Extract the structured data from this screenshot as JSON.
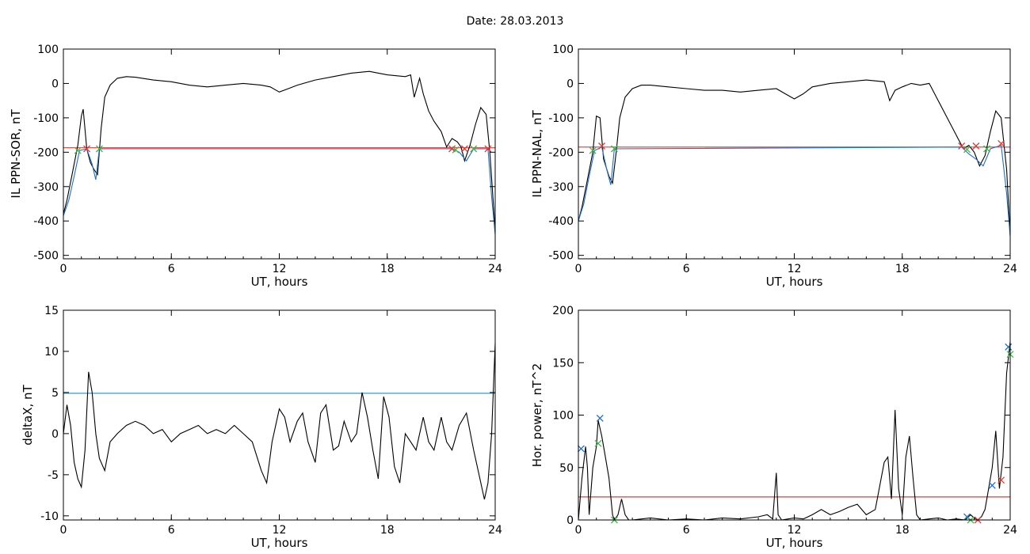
{
  "title": "Date:  28.03.2013",
  "chart_data": [
    {
      "type": "line",
      "xlabel": "UT, hours",
      "ylabel": "IL PPN-SOR, nT",
      "xlim": [
        0,
        24
      ],
      "ylim": [
        -510,
        100
      ],
      "xticks": [
        0,
        6,
        12,
        18,
        24
      ],
      "yticks": [
        100,
        0,
        -100,
        -200,
        -300,
        -400,
        -500
      ],
      "series": [
        {
          "color": "#000000",
          "x": [
            0,
            0.2,
            0.5,
            0.8,
            1.0,
            1.1,
            1.3,
            1.5,
            1.7,
            1.9,
            2.1,
            2.3,
            2.6,
            3.0,
            3.5,
            4.0,
            5.0,
            6.0,
            7.0,
            8.0,
            9.0,
            10.0,
            11.0,
            11.5,
            12.0,
            12.5,
            13.0,
            14.0,
            15.0,
            16.0,
            17.0,
            18.0,
            19.0,
            19.3,
            19.5,
            19.8,
            20.0,
            20.3,
            20.6,
            21.0,
            21.3,
            21.6,
            21.9,
            22.1,
            22.3,
            22.6,
            22.9,
            23.2,
            23.5,
            23.7,
            23.9,
            24.0
          ],
          "y": [
            -380,
            -340,
            -260,
            -180,
            -95,
            -75,
            -190,
            -230,
            -250,
            -265,
            -130,
            -40,
            -5,
            15,
            20,
            18,
            10,
            5,
            -5,
            -10,
            -5,
            0,
            -5,
            -10,
            -25,
            -15,
            -5,
            10,
            20,
            30,
            35,
            25,
            20,
            25,
            -40,
            15,
            -30,
            -80,
            -110,
            -140,
            -185,
            -160,
            -170,
            -185,
            -225,
            -180,
            -120,
            -70,
            -90,
            -200,
            -350,
            -430
          ]
        },
        {
          "color": "#1f6fc7",
          "x": [
            0,
            0.3,
            0.6,
            0.9,
            1.3,
            1.6,
            1.8,
            2.0,
            21.6,
            22.0,
            22.4,
            22.8,
            23.6,
            23.8,
            24.0
          ],
          "y": [
            -385,
            -340,
            -270,
            -195,
            -190,
            -235,
            -280,
            -190,
            -190,
            -200,
            -225,
            -190,
            -190,
            -330,
            -440
          ]
        }
      ],
      "threshold": {
        "y": -187,
        "color": "#e53935"
      },
      "markers": [
        {
          "x": 0.8,
          "y": -195,
          "color": "#3fb54a"
        },
        {
          "x": 1.3,
          "y": -190,
          "color": "#e53935"
        },
        {
          "x": 2.0,
          "y": -190,
          "color": "#3fb54a"
        },
        {
          "x": 21.6,
          "y": -190,
          "color": "#e53935"
        },
        {
          "x": 21.8,
          "y": -193,
          "color": "#3fb54a"
        },
        {
          "x": 22.3,
          "y": -190,
          "color": "#e53935"
        },
        {
          "x": 22.8,
          "y": -190,
          "color": "#3fb54a"
        },
        {
          "x": 23.6,
          "y": -190,
          "color": "#e53935"
        }
      ]
    },
    {
      "type": "line",
      "xlabel": "UT, hours",
      "ylabel": "IL PPN-NAL, nT",
      "xlim": [
        0,
        24
      ],
      "ylim": [
        -510,
        100
      ],
      "xticks": [
        0,
        6,
        12,
        18,
        24
      ],
      "yticks": [
        100,
        0,
        -100,
        -200,
        -300,
        -400,
        -500
      ],
      "series": [
        {
          "color": "#000000",
          "x": [
            0,
            0.2,
            0.5,
            0.8,
            1.0,
            1.2,
            1.4,
            1.7,
            1.9,
            2.1,
            2.3,
            2.6,
            3.0,
            3.5,
            4.0,
            5.0,
            6.0,
            7.0,
            8.0,
            9.0,
            10.0,
            11.0,
            11.5,
            12.0,
            12.5,
            13.0,
            14.0,
            15.0,
            16.0,
            17.0,
            17.3,
            17.6,
            18.0,
            18.5,
            19.0,
            19.5,
            20.0,
            20.5,
            20.8,
            21.1,
            21.4,
            21.7,
            22.0,
            22.3,
            22.6,
            22.9,
            23.2,
            23.5,
            23.8,
            24.0
          ],
          "y": [
            -400,
            -360,
            -280,
            -200,
            -95,
            -100,
            -220,
            -270,
            -290,
            -200,
            -100,
            -40,
            -15,
            -5,
            -5,
            -10,
            -15,
            -20,
            -20,
            -25,
            -20,
            -15,
            -30,
            -45,
            -30,
            -10,
            0,
            5,
            10,
            5,
            -50,
            -20,
            -10,
            0,
            -5,
            0,
            -50,
            -100,
            -130,
            -160,
            -190,
            -180,
            -200,
            -240,
            -210,
            -140,
            -80,
            -100,
            -250,
            -440
          ]
        },
        {
          "color": "#1f6fc7",
          "x": [
            0,
            0.3,
            0.6,
            0.9,
            1.3,
            1.6,
            1.8,
            2.0,
            21.3,
            21.7,
            22.1,
            22.5,
            22.9,
            23.5,
            23.8,
            24.0
          ],
          "y": [
            -400,
            -350,
            -270,
            -195,
            -185,
            -255,
            -295,
            -190,
            -185,
            -205,
            -220,
            -240,
            -190,
            -180,
            -320,
            -445
          ]
        }
      ],
      "threshold": {
        "y": -185,
        "color": "#e53935"
      },
      "markers": [
        {
          "x": 0.8,
          "y": -195,
          "color": "#3fb54a"
        },
        {
          "x": 1.3,
          "y": -182,
          "color": "#e53935"
        },
        {
          "x": 2.0,
          "y": -190,
          "color": "#3fb54a"
        },
        {
          "x": 21.3,
          "y": -182,
          "color": "#e53935"
        },
        {
          "x": 21.6,
          "y": -192,
          "color": "#3fb54a"
        },
        {
          "x": 22.1,
          "y": -182,
          "color": "#e53935"
        },
        {
          "x": 22.7,
          "y": -190,
          "color": "#3fb54a"
        },
        {
          "x": 23.5,
          "y": -175,
          "color": "#e53935"
        }
      ]
    },
    {
      "type": "line",
      "xlabel": "UT, hours",
      "ylabel": "deltaX, nT",
      "xlim": [
        0,
        24
      ],
      "ylim": [
        -10.5,
        15
      ],
      "xticks": [
        0,
        6,
        12,
        18,
        24
      ],
      "yticks": [
        15,
        10,
        5,
        0,
        -5,
        -10
      ],
      "series": [
        {
          "color": "#000000",
          "x": [
            0,
            0.2,
            0.4,
            0.6,
            0.8,
            1.0,
            1.2,
            1.4,
            1.6,
            1.8,
            2.0,
            2.3,
            2.6,
            3.0,
            3.5,
            4.0,
            4.5,
            5.0,
            5.5,
            6.0,
            6.5,
            7.0,
            7.5,
            8.0,
            8.5,
            9.0,
            9.5,
            10.0,
            10.5,
            11.0,
            11.3,
            11.6,
            12.0,
            12.3,
            12.6,
            13.0,
            13.3,
            13.6,
            14.0,
            14.3,
            14.6,
            15.0,
            15.3,
            15.6,
            16.0,
            16.3,
            16.6,
            16.9,
            17.2,
            17.5,
            17.8,
            18.1,
            18.4,
            18.7,
            19.0,
            19.3,
            19.6,
            20.0,
            20.3,
            20.6,
            21.0,
            21.3,
            21.6,
            22.0,
            22.4,
            22.8,
            23.1,
            23.4,
            23.6,
            23.8,
            24.0
          ],
          "y": [
            0,
            3.5,
            1.0,
            -3.5,
            -5.5,
            -6.5,
            -2.0,
            7.5,
            5.0,
            0,
            -3.0,
            -4.5,
            -1.0,
            0,
            1.0,
            1.5,
            1.0,
            0,
            0.5,
            -1.0,
            0,
            0.5,
            1.0,
            0,
            0.5,
            0,
            1.0,
            0,
            -1.0,
            -4.5,
            -6.0,
            -1.0,
            3.0,
            2.0,
            -1.0,
            1.5,
            2.5,
            -1.0,
            -3.5,
            2.5,
            3.5,
            -2.0,
            -1.5,
            1.5,
            -1.0,
            0,
            5.0,
            2.0,
            -2.0,
            -5.5,
            4.5,
            2.0,
            -4.0,
            -6.0,
            0,
            -1.0,
            -2.0,
            2.0,
            -1.0,
            -2.0,
            2.0,
            -1.0,
            -2.0,
            1.0,
            2.5,
            -2.0,
            -5.0,
            -8.0,
            -6.0,
            0,
            11.0
          ]
        }
      ],
      "threshold": {
        "y": 4.9,
        "color": "#1f8fc7"
      },
      "markers": []
    },
    {
      "type": "line",
      "xlabel": "UT, hours",
      "ylabel": "Hor. power, nT^2",
      "xlim": [
        0,
        24
      ],
      "ylim": [
        0,
        200
      ],
      "xticks": [
        0,
        6,
        12,
        18,
        24
      ],
      "yticks": [
        200,
        150,
        100,
        50,
        0
      ],
      "series": [
        {
          "color": "#000000",
          "x": [
            0,
            0.2,
            0.4,
            0.5,
            0.6,
            0.8,
            1.0,
            1.1,
            1.3,
            1.5,
            1.7,
            1.9,
            2.0,
            2.2,
            2.4,
            2.6,
            2.8,
            3.0,
            4.0,
            5.0,
            6.0,
            7.0,
            8.0,
            9.0,
            10.0,
            10.5,
            10.8,
            11.0,
            11.1,
            11.3,
            12.0,
            12.5,
            13.0,
            13.5,
            14.0,
            14.5,
            15.0,
            15.5,
            16.0,
            16.5,
            17.0,
            17.2,
            17.4,
            17.6,
            17.8,
            18.0,
            18.2,
            18.4,
            18.6,
            18.8,
            19.0,
            19.5,
            20.0,
            20.5,
            21.0,
            21.5,
            21.8,
            22.0,
            22.2,
            22.4,
            22.6,
            22.8,
            23.0,
            23.2,
            23.4,
            23.6,
            23.8,
            24.0
          ],
          "y": [
            0,
            40,
            70,
            50,
            5,
            50,
            70,
            95,
            80,
            60,
            40,
            5,
            0,
            5,
            20,
            5,
            0,
            0,
            2,
            0,
            1,
            0,
            2,
            1,
            3,
            5,
            1,
            45,
            5,
            0,
            2,
            1,
            5,
            10,
            5,
            8,
            12,
            15,
            5,
            10,
            55,
            60,
            20,
            105,
            30,
            5,
            60,
            80,
            40,
            5,
            0,
            1,
            2,
            0,
            1,
            0,
            5,
            2,
            0,
            3,
            10,
            30,
            50,
            85,
            30,
            60,
            140,
            170
          ]
        }
      ],
      "threshold": {
        "y": 22,
        "color": "#e53935"
      },
      "markers": [
        {
          "x": 0.15,
          "y": 68,
          "color": "#1f6fc7"
        },
        {
          "x": 1.1,
          "y": 73,
          "color": "#3fb54a"
        },
        {
          "x": 1.2,
          "y": 97,
          "color": "#1f6fc7"
        },
        {
          "x": 2.0,
          "y": 0,
          "color": "#3fb54a"
        },
        {
          "x": 21.6,
          "y": 3,
          "color": "#1f6fc7"
        },
        {
          "x": 21.8,
          "y": 0,
          "color": "#3fb54a"
        },
        {
          "x": 22.2,
          "y": 0,
          "color": "#e53935"
        },
        {
          "x": 23.0,
          "y": 33,
          "color": "#1f6fc7"
        },
        {
          "x": 23.5,
          "y": 38,
          "color": "#e53935"
        },
        {
          "x": 23.9,
          "y": 165,
          "color": "#1f6fc7"
        },
        {
          "x": 24.0,
          "y": 158,
          "color": "#3fb54a"
        }
      ]
    }
  ]
}
